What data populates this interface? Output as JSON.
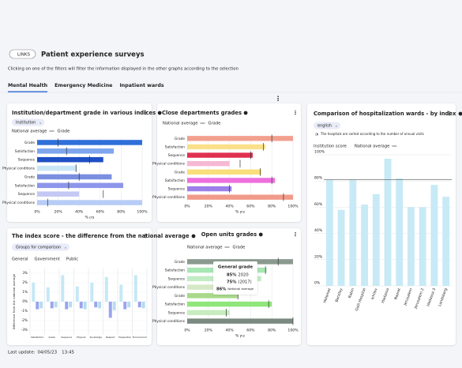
{
  "header": {
    "links_button": "LINKS",
    "title": "Patient experience surveys",
    "subtitle": "Clicking on one of the filters will filter the information displayed in the other graphs according to the selection"
  },
  "tabs": [
    "Mental Health",
    "Emergency Medicine",
    "Inpatient wards"
  ],
  "footer": {
    "label": "Last update:",
    "date": "04/05/23",
    "time": "13:45"
  },
  "chart_data": [
    {
      "type": "hbar",
      "title": "Institution/department grade in various indices",
      "dropdown": "Institution",
      "legend": [
        "National average",
        "Grade"
      ],
      "categories": [
        "Grade",
        "Satisfaction",
        "Sequence",
        "Physical conditions",
        "Grade",
        "Satisfaction",
        "Sequence",
        "Physical conditions"
      ],
      "values": [
        100,
        73,
        63,
        38,
        71,
        82,
        40,
        100
      ],
      "colors": [
        "#2f6fd9",
        "#7ea6ee",
        "#1f4fc4",
        "#c9e6f7",
        "#7a8fe0",
        "#8d96ea",
        "#c4c8f4",
        "#b7cdf6"
      ],
      "national_average": [
        20,
        28,
        50,
        37,
        40,
        30,
        63,
        10
      ],
      "xlim": [
        0,
        100
      ],
      "grid": true,
      "x_label": "% ציון",
      "xticks": [
        {
          "value": 0,
          "label": "0%"
        },
        {
          "value": 20,
          "label": "20%"
        },
        {
          "value": 40,
          "label": "40%"
        },
        {
          "value": 60,
          "label": "60%"
        },
        {
          "value": 80,
          "label": "80%"
        },
        {
          "value": 100,
          "label": "100%"
        }
      ]
    },
    {
      "type": "hbar",
      "title": "Close departments grades",
      "legend": [
        "National average",
        "Grade"
      ],
      "categories": [
        "Grade",
        "Satisfaction",
        "Sequence",
        "Physical conditions",
        "Grade",
        "Satisfaction",
        "Sequence",
        "Physical conditions"
      ],
      "values": [
        100,
        74,
        62,
        40,
        70,
        83,
        42,
        100
      ],
      "colors": [
        "#f2a08f",
        "#fbe08a",
        "#e0304f",
        "#f5b9d4",
        "#f9de7a",
        "#ee6fdd",
        "#9c7fe8",
        "#f29a8a"
      ],
      "national_average": [
        80,
        72,
        60,
        50,
        69,
        80,
        40,
        91
      ],
      "xlim": [
        0,
        100
      ],
      "grid": true,
      "x_label": "% ציון",
      "xticks": [
        {
          "value": 0,
          "label": "0%"
        },
        {
          "value": 20,
          "label": "20%"
        },
        {
          "value": 40,
          "label": "40%"
        },
        {
          "value": 60,
          "label": "60%"
        },
        {
          "value": 80,
          "label": "80%"
        },
        {
          "value": 100,
          "label": "100%"
        }
      ]
    },
    {
      "type": "vbar",
      "title": "Comparison of hospitalization wards - by index",
      "dropdown": "english",
      "note": "The hospitals are sorted according to the number of annual visits",
      "legend": [
        "Institution score",
        "National average"
      ],
      "categories": [
        "Holomet",
        "Barzilay",
        "Rabin",
        "Galil Hospital",
        "Ichilov",
        "Hadassa",
        "Nazrat",
        "Jerusalem",
        "Jerusalem 2",
        "Hadassa 3",
        "Landsberg"
      ],
      "values": [
        81,
        58,
        81,
        62,
        70,
        97,
        82,
        60,
        60,
        77,
        68
      ],
      "color": "#c7eaf6",
      "national_average": 81,
      "ylim": [
        0,
        100
      ],
      "grid": true,
      "yticks": [
        {
          "value": 0,
          "label": "0%"
        },
        {
          "value": 20,
          "label": "20%"
        },
        {
          "value": 40,
          "label": "40%"
        },
        {
          "value": 60,
          "label": "60%"
        },
        {
          "value": 80,
          "label": "80%"
        },
        {
          "value": 100,
          "label": "100%"
        }
      ]
    },
    {
      "type": "grouped",
      "title": "The index score - the difference from the national average",
      "dropdown": "Groups for comparison",
      "y_label": "Difference from the national average",
      "categories": [
        "Satisfaction",
        "Grade",
        "Sequence",
        "Physical",
        "Knowledge",
        "Respect",
        "Preparation",
        "Environment"
      ],
      "series": [
        {
          "name": "General",
          "color": "#c5e8f6",
          "values": [
            2,
            1.5,
            2.8,
            1.6,
            2,
            2.6,
            1.8,
            2.8
          ]
        },
        {
          "name": "Government",
          "color": "#9aa4ee",
          "values": [
            -0.8,
            -0.7,
            -0.8,
            -0.7,
            -0.6,
            -1.7,
            -0.8,
            -0.6
          ]
        },
        {
          "name": "Public",
          "color": "#b5dcf0",
          "values": [
            -0.7,
            -0.6,
            -0.6,
            -0.8,
            -0.7,
            -0.9,
            -0.6,
            -0.7
          ]
        }
      ],
      "ylim": [
        -3.5,
        3.5
      ],
      "grid": true,
      "yticks": [
        {
          "value": 3,
          "label": "3%"
        },
        {
          "value": 2,
          "label": "2%"
        },
        {
          "value": 1,
          "label": "1%"
        },
        {
          "value": 0,
          "label": "0%"
        },
        {
          "value": -1,
          "label": "-1%"
        },
        {
          "value": -2,
          "label": "-2%"
        },
        {
          "value": -3,
          "label": "-3%"
        }
      ]
    },
    {
      "type": "hbar",
      "title": "Open units grades",
      "legend": [
        "National average",
        "Grade"
      ],
      "categories": [
        "Grade",
        "Satisfaction",
        "Sequence",
        "Physical conditions",
        "Grade",
        "Satisfaction",
        "Sequence",
        "Physical conditions"
      ],
      "values": [
        100,
        75,
        70,
        60,
        48,
        80,
        40,
        100
      ],
      "colors": [
        "#8a9a8f",
        "#a8e6b4",
        "#c2ecc4",
        "#d7e8c7",
        "#a8d98a",
        "#8fe67a",
        "#c8ecc0",
        "#7a8a80"
      ],
      "national_average": [
        86,
        74,
        60,
        50,
        48,
        77,
        37,
        100
      ],
      "xlim": [
        0,
        100
      ],
      "grid": true,
      "x_label": "% ציון",
      "xticks": [
        {
          "value": 0,
          "label": "0%"
        },
        {
          "value": 20,
          "label": "20%"
        },
        {
          "value": 40,
          "label": "40%"
        },
        {
          "value": 60,
          "label": "60%"
        },
        {
          "value": 80,
          "label": "80%"
        },
        {
          "value": 100,
          "label": "100%"
        }
      ],
      "tooltip": {
        "title": "General grade",
        "rows": [
          [
            "85%",
            "2020"
          ],
          [
            "75%",
            "(2017)"
          ],
          [
            "86%",
            "National average"
          ]
        ]
      }
    }
  ]
}
